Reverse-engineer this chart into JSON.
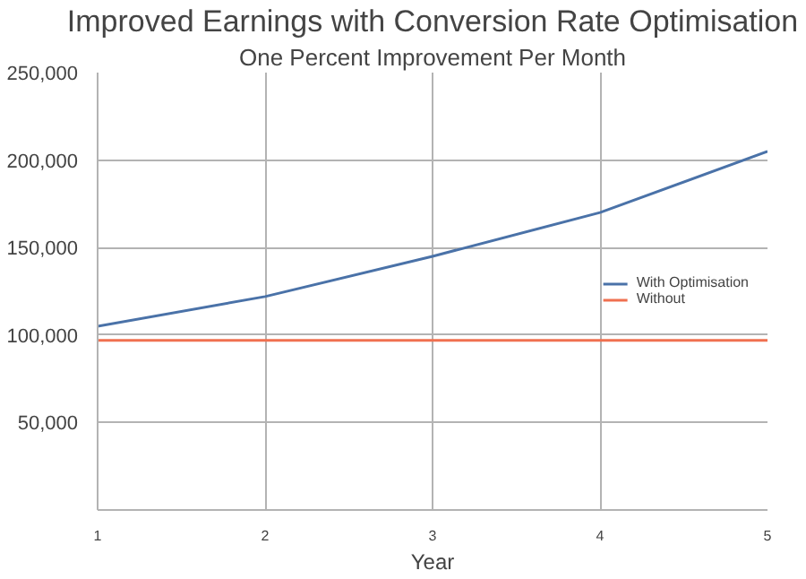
{
  "chart_data": {
    "type": "line",
    "title": "Improved Earnings with Conversion Rate Optimisation",
    "subtitle": "One Percent Improvement Per Month",
    "xlabel": "Year",
    "x": [
      1,
      2,
      3,
      4,
      5
    ],
    "xlim": [
      1,
      5
    ],
    "xticks": [
      1,
      2,
      3,
      4,
      5
    ],
    "ylim": [
      0,
      250000
    ],
    "yticks": [
      {
        "value": 0,
        "label": null
      },
      {
        "value": 50000,
        "label": "50,000"
      },
      {
        "value": 100000,
        "label": "100,000"
      },
      {
        "value": 150000,
        "label": "150,000"
      },
      {
        "value": 200000,
        "label": "200,000"
      },
      {
        "value": 250000,
        "label": "250,000"
      }
    ],
    "series": [
      {
        "name": "With Optimisation",
        "color": "#4a72a8",
        "values": [
          105000,
          122000,
          145000,
          170000,
          205000
        ]
      },
      {
        "name": "Without",
        "color": "#f07050",
        "values": [
          97000,
          97000,
          97000,
          97000,
          97000
        ]
      }
    ],
    "grid": true,
    "legend": "right",
    "marker": "none",
    "line_style": "solid"
  }
}
